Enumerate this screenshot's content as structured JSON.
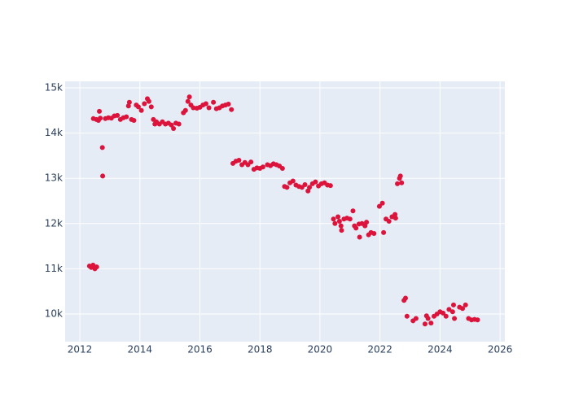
{
  "chart_data": {
    "type": "scatter",
    "x": [
      2012.32,
      2012.38,
      2012.44,
      2012.5,
      2012.56,
      2012.45,
      2012.55,
      2012.62,
      2012.68,
      2012.65,
      2012.75,
      2012.76,
      2012.85,
      2012.95,
      2013.05,
      2013.15,
      2013.25,
      2013.35,
      2013.45,
      2013.55,
      2013.62,
      2013.65,
      2013.72,
      2013.8,
      2013.88,
      2013.95,
      2014.05,
      2014.15,
      2014.25,
      2014.3,
      2014.38,
      2014.45,
      2014.5,
      2014.55,
      2014.65,
      2014.75,
      2014.85,
      2014.95,
      2015.05,
      2015.12,
      2015.2,
      2015.3,
      2015.45,
      2015.52,
      2015.6,
      2015.65,
      2015.7,
      2015.78,
      2015.9,
      2016.0,
      2016.1,
      2016.2,
      2016.3,
      2016.45,
      2016.55,
      2016.65,
      2016.75,
      2016.85,
      2016.95,
      2017.05,
      2017.1,
      2017.2,
      2017.3,
      2017.4,
      2017.5,
      2017.6,
      2017.7,
      2017.8,
      2017.9,
      2018.0,
      2018.1,
      2018.25,
      2018.35,
      2018.45,
      2018.55,
      2018.65,
      2018.75,
      2018.82,
      2018.9,
      2019.0,
      2019.1,
      2019.2,
      2019.3,
      2019.4,
      2019.5,
      2019.6,
      2019.65,
      2019.75,
      2019.85,
      2019.95,
      2020.05,
      2020.15,
      2020.25,
      2020.35,
      2020.45,
      2020.5,
      2020.6,
      2020.65,
      2020.7,
      2020.72,
      2020.8,
      2020.9,
      2021.0,
      2021.1,
      2021.15,
      2021.2,
      2021.3,
      2021.32,
      2021.4,
      2021.5,
      2021.55,
      2021.62,
      2021.7,
      2021.8,
      2021.98,
      2022.08,
      2022.12,
      2022.2,
      2022.3,
      2022.4,
      2022.5,
      2022.52,
      2022.58,
      2022.65,
      2022.68,
      2022.72,
      2022.8,
      2022.85,
      2022.9,
      2023.1,
      2023.2,
      2023.5,
      2023.55,
      2023.6,
      2023.7,
      2023.8,
      2023.9,
      2024.0,
      2024.1,
      2024.2,
      2024.3,
      2024.42,
      2024.45,
      2024.48,
      2024.65,
      2024.75,
      2024.85,
      2024.95,
      2025.05,
      2025.15,
      2025.25
    ],
    "values": [
      11060,
      11030,
      11080,
      11000,
      11040,
      14320,
      14300,
      14280,
      14330,
      14480,
      13680,
      13050,
      14320,
      14340,
      14330,
      14380,
      14390,
      14300,
      14340,
      14360,
      14600,
      14680,
      14300,
      14280,
      14620,
      14580,
      14500,
      14650,
      14760,
      14700,
      14580,
      14300,
      14200,
      14250,
      14200,
      14250,
      14200,
      14220,
      14180,
      14100,
      14220,
      14200,
      14450,
      14500,
      14700,
      14800,
      14620,
      14560,
      14550,
      14570,
      14620,
      14650,
      14560,
      14680,
      14540,
      14560,
      14600,
      14620,
      14640,
      14520,
      13330,
      13380,
      13400,
      13300,
      13350,
      13300,
      13360,
      13200,
      13230,
      13220,
      13250,
      13300,
      13280,
      13320,
      13300,
      13270,
      13220,
      12820,
      12800,
      12900,
      12940,
      12850,
      12820,
      12800,
      12860,
      12720,
      12800,
      12880,
      12920,
      12830,
      12880,
      12900,
      12850,
      12840,
      12100,
      12000,
      12150,
      12050,
      11950,
      11850,
      12100,
      12120,
      12100,
      12280,
      11950,
      11900,
      11990,
      11700,
      12000,
      11950,
      12030,
      11750,
      11800,
      11780,
      12380,
      12450,
      11800,
      12100,
      12050,
      12150,
      12200,
      12120,
      12880,
      13000,
      13050,
      12900,
      10300,
      10350,
      9950,
      9850,
      9900,
      9780,
      9960,
      9900,
      9800,
      9950,
      10000,
      10050,
      10020,
      9950,
      10100,
      10050,
      10200,
      9900,
      10150,
      10120,
      10200,
      9900,
      9870,
      9880,
      9870
    ],
    "color": "#dc143c",
    "xlim": [
      2011.51,
      2026.16
    ],
    "ylim": [
      9388,
      15144
    ],
    "xticks": [
      2012,
      2014,
      2016,
      2018,
      2020,
      2022,
      2024,
      2026
    ],
    "yticks": [
      {
        "value": 10000,
        "label": "10k"
      },
      {
        "value": 11000,
        "label": "11k"
      },
      {
        "value": 12000,
        "label": "12k"
      },
      {
        "value": 13000,
        "label": "13k"
      },
      {
        "value": 14000,
        "label": "14k"
      },
      {
        "value": 15000,
        "label": "15k"
      }
    ],
    "grid": true
  }
}
